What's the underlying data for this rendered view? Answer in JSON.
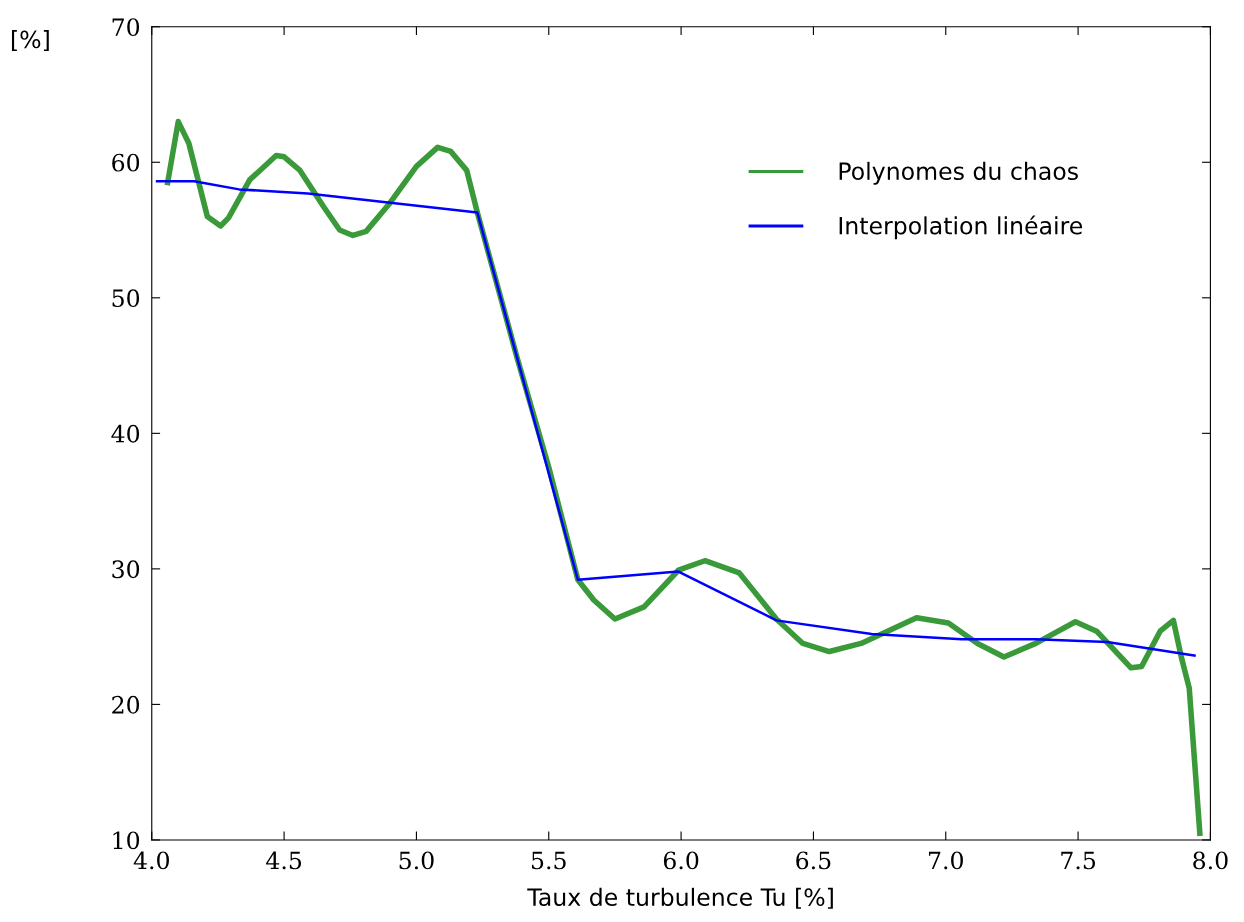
{
  "chart_data": {
    "type": "line",
    "xlabel": "Taux de turbulence Tu [%]",
    "ylabel": "[%]",
    "xlim": [
      4.0,
      8.0
    ],
    "ylim": [
      10,
      70
    ],
    "xticks": [
      {
        "value": 4.0,
        "label": "4.0"
      },
      {
        "value": 4.5,
        "label": "4.5"
      },
      {
        "value": 5.0,
        "label": "5.0"
      },
      {
        "value": 5.5,
        "label": "5.5"
      },
      {
        "value": 6.0,
        "label": "6.0"
      },
      {
        "value": 6.5,
        "label": "6.5"
      },
      {
        "value": 7.0,
        "label": "7.0"
      },
      {
        "value": 7.5,
        "label": "7.5"
      },
      {
        "value": 8.0,
        "label": "8.0"
      }
    ],
    "yticks": [
      10,
      20,
      30,
      40,
      50,
      60,
      70
    ],
    "grid": false,
    "legend": "top right",
    "marker": "none",
    "line_style": "solid",
    "series": [
      {
        "name": "Polynomes du chaos",
        "color": "#3a9a3a",
        "x": [
          4.06,
          4.1,
          4.14,
          4.21,
          4.26,
          4.29,
          4.37,
          4.47,
          4.5,
          4.56,
          4.65,
          4.71,
          4.76,
          4.81,
          4.9,
          5.0,
          5.08,
          5.13,
          5.19,
          5.23,
          5.32,
          5.38,
          5.5,
          5.61,
          5.67,
          5.75,
          5.86,
          5.99,
          6.09,
          6.22,
          6.36,
          6.46,
          6.56,
          6.68,
          6.89,
          7.01,
          7.12,
          7.22,
          7.34,
          7.49,
          7.57,
          7.7,
          7.74,
          7.81,
          7.86,
          7.89,
          7.92,
          7.96
        ],
        "values": [
          58.5,
          63.0,
          61.4,
          56.0,
          55.3,
          55.9,
          58.7,
          60.5,
          60.4,
          59.4,
          56.7,
          55.0,
          54.6,
          54.9,
          57.0,
          59.7,
          61.1,
          60.8,
          59.4,
          56.3,
          49.9,
          45.6,
          37.5,
          29.2,
          27.7,
          26.3,
          27.2,
          29.9,
          30.6,
          29.7,
          26.3,
          24.5,
          23.9,
          24.5,
          26.4,
          26.0,
          24.5,
          23.5,
          24.5,
          26.1,
          25.4,
          22.7,
          22.8,
          25.4,
          26.2,
          23.5,
          21.2,
          10.5
        ]
      },
      {
        "name": "Interpolation linéaire",
        "color": "#0000ff",
        "x": [
          4.02,
          4.16,
          4.33,
          4.59,
          5.23,
          5.61,
          5.99,
          6.36,
          6.72,
          7.06,
          7.34,
          7.61,
          7.94
        ],
        "values": [
          58.6,
          58.6,
          58.0,
          57.7,
          56.3,
          29.2,
          29.8,
          26.2,
          25.2,
          24.8,
          24.8,
          24.6,
          23.6
        ]
      }
    ]
  }
}
